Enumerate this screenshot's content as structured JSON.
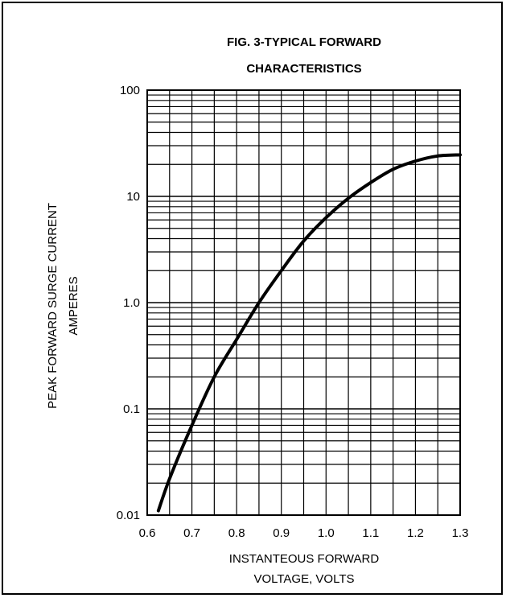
{
  "chart_data": {
    "type": "line",
    "title_lines": [
      "FIG. 3-TYPICAL FORWARD",
      "CHARACTERISTICS"
    ],
    "xlabel_lines": [
      "INSTANTEOUS FORWARD",
      "VOLTAGE, VOLTS"
    ],
    "ylabel_lines": [
      "PEAK FORWARD SURGE CURRENT",
      "AMPERES"
    ],
    "x_scale": "linear",
    "y_scale": "log",
    "xlim": [
      0.6,
      1.3
    ],
    "ylim": [
      0.01,
      100
    ],
    "x_ticks": [
      0.6,
      0.7,
      0.8,
      0.9,
      1.0,
      1.1,
      1.2,
      1.3
    ],
    "x_tick_labels": [
      "0.6",
      "0.7",
      "0.8",
      "0.9",
      "1.0",
      "1.1",
      "1.2",
      "1.3"
    ],
    "y_ticks": [
      0.01,
      0.1,
      1,
      10,
      100
    ],
    "y_tick_labels": [
      "0.01",
      "0.1",
      "1.0",
      "10",
      "100"
    ],
    "grid": true,
    "series": [
      {
        "color": "#000000",
        "points": [
          [
            0.625,
            0.011
          ],
          [
            0.65,
            0.022
          ],
          [
            0.7,
            0.07
          ],
          [
            0.75,
            0.2
          ],
          [
            0.8,
            0.45
          ],
          [
            0.85,
            1.0
          ],
          [
            0.9,
            2.0
          ],
          [
            0.95,
            3.8
          ],
          [
            1.0,
            6.3
          ],
          [
            1.05,
            9.6
          ],
          [
            1.1,
            13.5
          ],
          [
            1.15,
            18.0
          ],
          [
            1.2,
            21.5
          ],
          [
            1.25,
            24.0
          ],
          [
            1.3,
            24.6
          ]
        ]
      }
    ]
  }
}
